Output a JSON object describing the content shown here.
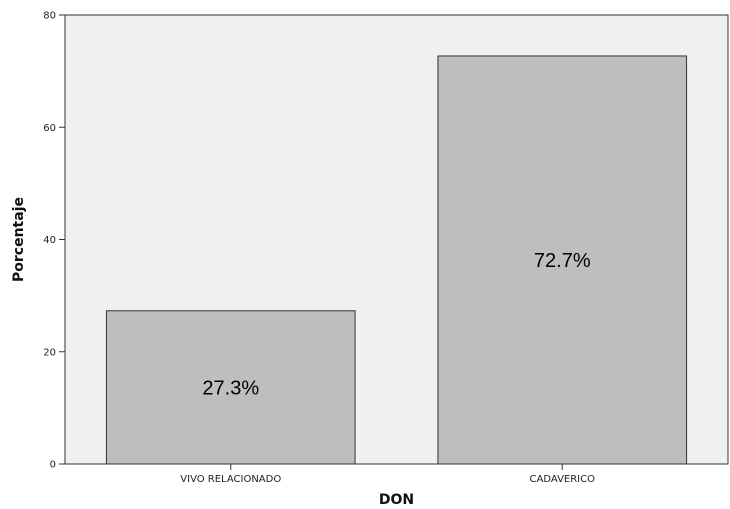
{
  "chart_data": {
    "type": "bar",
    "categories": [
      "VIVO RELACIONADO",
      "CADAVERICO"
    ],
    "values": [
      27.3,
      72.7
    ],
    "data_labels": [
      "27.3%",
      "72.7%"
    ],
    "title": "",
    "xlabel": "DON",
    "ylabel": "Porcentaje",
    "ylim": [
      0,
      80
    ],
    "yticks": [
      0,
      20,
      40,
      60,
      80
    ],
    "grid": false,
    "legend": "none",
    "colors": {
      "plot_background": "#f0f0f0",
      "bar_fill": "#bebebe",
      "bar_stroke": "#333333",
      "axis": "#333333"
    }
  }
}
